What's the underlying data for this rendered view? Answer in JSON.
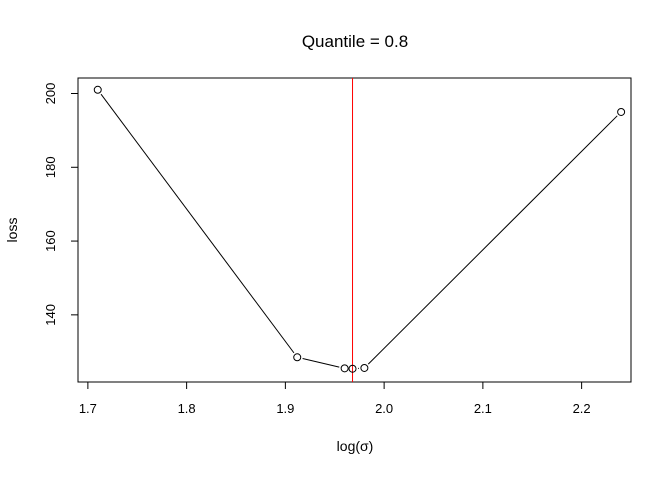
{
  "chart_data": {
    "type": "line",
    "title": "Quantile = 0.8",
    "xlabel": "log(σ)",
    "ylabel": "loss",
    "xlim": [
      1.69,
      2.25
    ],
    "ylim": [
      121.8,
      204.2
    ],
    "x_ticks": [
      1.7,
      1.8,
      1.9,
      2.0,
      2.1,
      2.2
    ],
    "x_tick_labels": [
      "1.7",
      "1.8",
      "1.9",
      "2.0",
      "2.1",
      "2.2"
    ],
    "y_ticks": [
      140,
      160,
      180,
      200
    ],
    "y_tick_labels": [
      "140",
      "160",
      "180",
      "200"
    ],
    "grid": false,
    "series": [
      {
        "x": [
          1.71,
          1.912,
          1.96,
          1.968,
          1.98,
          2.24
        ],
        "y": [
          201.0,
          128.5,
          125.5,
          125.4,
          125.6,
          195.0
        ],
        "markers": "open-circle",
        "color": "#000000"
      }
    ],
    "vline": {
      "x": 1.968,
      "color": "#ff0000"
    }
  }
}
